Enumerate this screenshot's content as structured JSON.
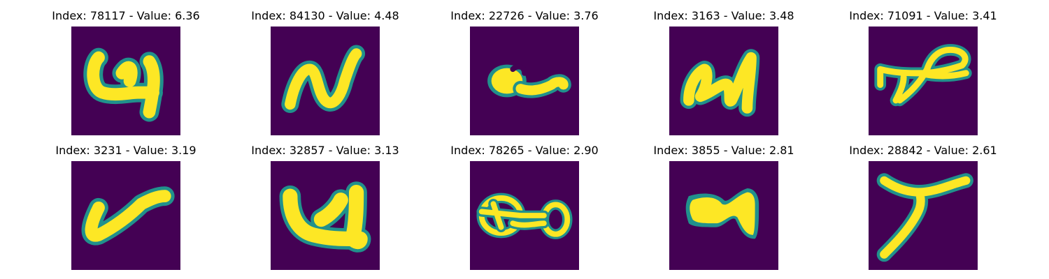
{
  "colors": {
    "background": "#440154",
    "edge": "#21918c",
    "stroke": "#fde725"
  },
  "panels": [
    {
      "title": "Index: 78117 - Value: 6.36",
      "glyph": "glyph-9-like"
    },
    {
      "title": "Index: 84130 - Value: 4.48",
      "glyph": "glyph-n-like"
    },
    {
      "title": "Index: 22726 - Value: 3.76",
      "glyph": "glyph-a-like"
    },
    {
      "title": "Index: 3163 - Value: 3.48",
      "glyph": "glyph-cursive-like"
    },
    {
      "title": "Index: 71091 - Value: 3.41",
      "glyph": "glyph-loop-like"
    },
    {
      "title": "Index: 3231 - Value: 3.19",
      "glyph": "glyph-v-like"
    },
    {
      "title": "Index: 32857 - Value: 3.13",
      "glyph": "glyph-u-like"
    },
    {
      "title": "Index: 78265 - Value: 2.90",
      "glyph": "glyph-double-o-like"
    },
    {
      "title": "Index: 3855 - Value: 2.81",
      "glyph": "glyph-m-like"
    },
    {
      "title": "Index: 28842 - Value: 2.61",
      "glyph": "glyph-y-like"
    }
  ]
}
